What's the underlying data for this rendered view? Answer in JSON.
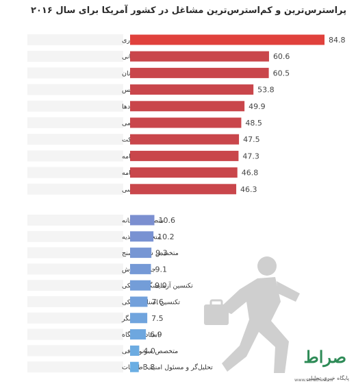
{
  "chart_data": {
    "type": "bar",
    "orientation": "horizontal",
    "title": "پراسترس‌ترین و کم‌استرس‌ترین مشاغل در کشور آمریکا برای سال ۲۰۱۶",
    "groups": [
      {
        "group": "most-stressful",
        "color": "#c9464b",
        "top_color": "#e0413c",
        "categories": [
          "سربازان ارتش دارای درجه استواری",
          "ماموران آتش‌نشانی",
          "خلبانان",
          "ماموران پلیس",
          "هماهنگ‌کننده رویدادها",
          "مدیر روابط عمومی",
          "مدیر ارشد شرکت",
          "مجری برنامه",
          "گزارشگر روزنامه",
          "راننده تاکسی"
        ],
        "values": [
          84.8,
          60.6,
          60.5,
          53.8,
          49.9,
          48.5,
          47.5,
          47.3,
          46.8,
          46.3
        ]
      },
      {
        "group": "least-stressful",
        "color": "#7b8fd0",
        "bottom_color": "#6aaee3",
        "categories": [
          "متصدی کتابخانه",
          "متخصص تغذیه",
          "متخصص شنوایی‌سنج",
          "جواهرفروش",
          "تکنسین آزمایشگاه پزشکی",
          "تکنسین اسناد پزشکی",
          "آرایشگر",
          "استاد دانشگاه",
          "متخصص سونوگرافی",
          "تحلیل‌گر و مسئول امنیت اطلاعات"
        ],
        "values": [
          10.6,
          10.2,
          9.3,
          9.1,
          9.0,
          7.6,
          7.5,
          6.9,
          4.0,
          3.8
        ]
      }
    ],
    "xlim": [
      0,
      84.8
    ],
    "grid": false,
    "legend": "none"
  },
  "watermark": {
    "logo": "صراط",
    "tagline": "پایگاه خبری تحلیلی",
    "site": "www.seratnews.ir"
  }
}
